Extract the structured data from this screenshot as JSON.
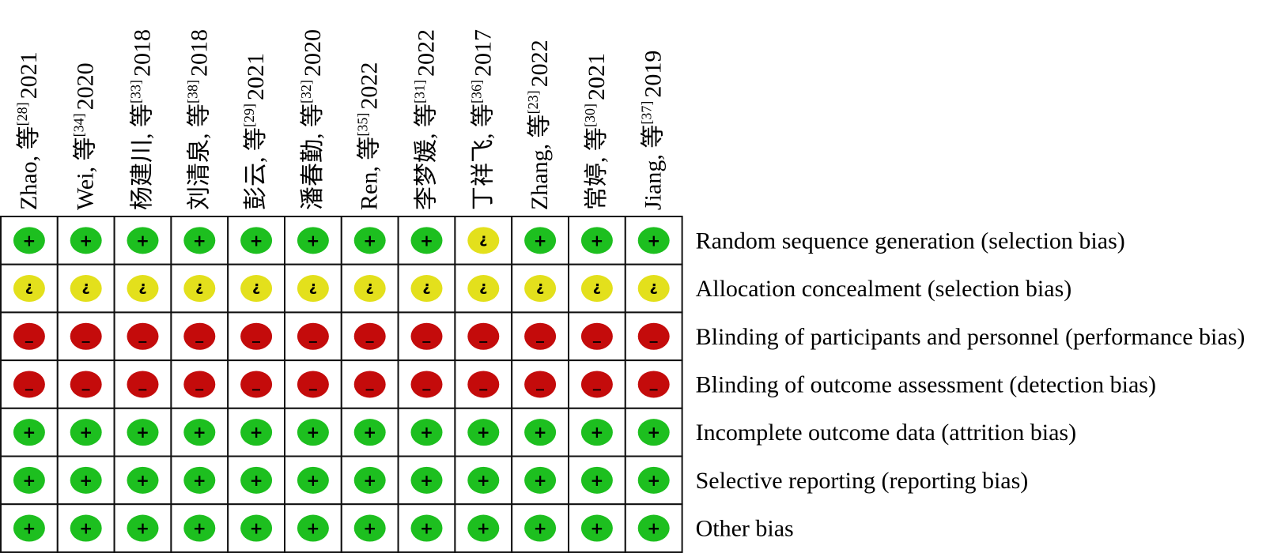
{
  "colors": {
    "low": "#1dbf1f",
    "unclear": "#e3e01c",
    "high": "#c40b0b",
    "grid": "#111111"
  },
  "symbols": {
    "low": "+",
    "unclear": "?",
    "high": "−"
  },
  "chart_data": {
    "type": "table",
    "title": "",
    "studies": [
      {
        "name": "Zhao, 等",
        "ref": "[28]",
        "year": "2021"
      },
      {
        "name": "Wei, 等",
        "ref": "[34]",
        "year": "2020"
      },
      {
        "name": "杨建川, 等",
        "ref": "[33]",
        "year": "2018"
      },
      {
        "name": "刘清泉, 等",
        "ref": "[38]",
        "year": "2018"
      },
      {
        "name": "彭云, 等",
        "ref": "[29]",
        "year": "2021"
      },
      {
        "name": "潘春勤, 等",
        "ref": "[32]",
        "year": "2020"
      },
      {
        "name": "Ren, 等",
        "ref": "[35]",
        "year": "2022"
      },
      {
        "name": "李梦媛, 等",
        "ref": "[31]",
        "year": "2022"
      },
      {
        "name": "丁祥飞, 等",
        "ref": "[36]",
        "year": "2017"
      },
      {
        "name": "Zhang, 等",
        "ref": "[23]",
        "year": "2022"
      },
      {
        "name": "常婷, 等",
        "ref": "[30]",
        "year": "2021"
      },
      {
        "name": "Jiang, 等",
        "ref": "[37]",
        "year": "2019"
      }
    ],
    "domains": [
      "Random sequence generation (selection bias)",
      "Allocation concealment (selection bias)",
      "Blinding of participants and personnel (performance bias)",
      "Blinding of outcome assessment (detection bias)",
      "Incomplete outcome data (attrition bias)",
      "Selective reporting (reporting bias)",
      "Other bias"
    ],
    "judgements": [
      [
        "low",
        "low",
        "low",
        "low",
        "low",
        "low",
        "low",
        "low",
        "unclear",
        "low",
        "low",
        "low"
      ],
      [
        "unclear",
        "unclear",
        "unclear",
        "unclear",
        "unclear",
        "unclear",
        "unclear",
        "unclear",
        "unclear",
        "unclear",
        "unclear",
        "unclear"
      ],
      [
        "high",
        "high",
        "high",
        "high",
        "high",
        "high",
        "high",
        "high",
        "high",
        "high",
        "high",
        "high"
      ],
      [
        "high",
        "high",
        "high",
        "high",
        "high",
        "high",
        "high",
        "high",
        "high",
        "high",
        "high",
        "high"
      ],
      [
        "low",
        "low",
        "low",
        "low",
        "low",
        "low",
        "low",
        "low",
        "low",
        "low",
        "low",
        "low"
      ],
      [
        "low",
        "low",
        "low",
        "low",
        "low",
        "low",
        "low",
        "low",
        "low",
        "low",
        "low",
        "low"
      ],
      [
        "low",
        "low",
        "low",
        "low",
        "low",
        "low",
        "low",
        "low",
        "low",
        "low",
        "low",
        "low"
      ]
    ]
  }
}
